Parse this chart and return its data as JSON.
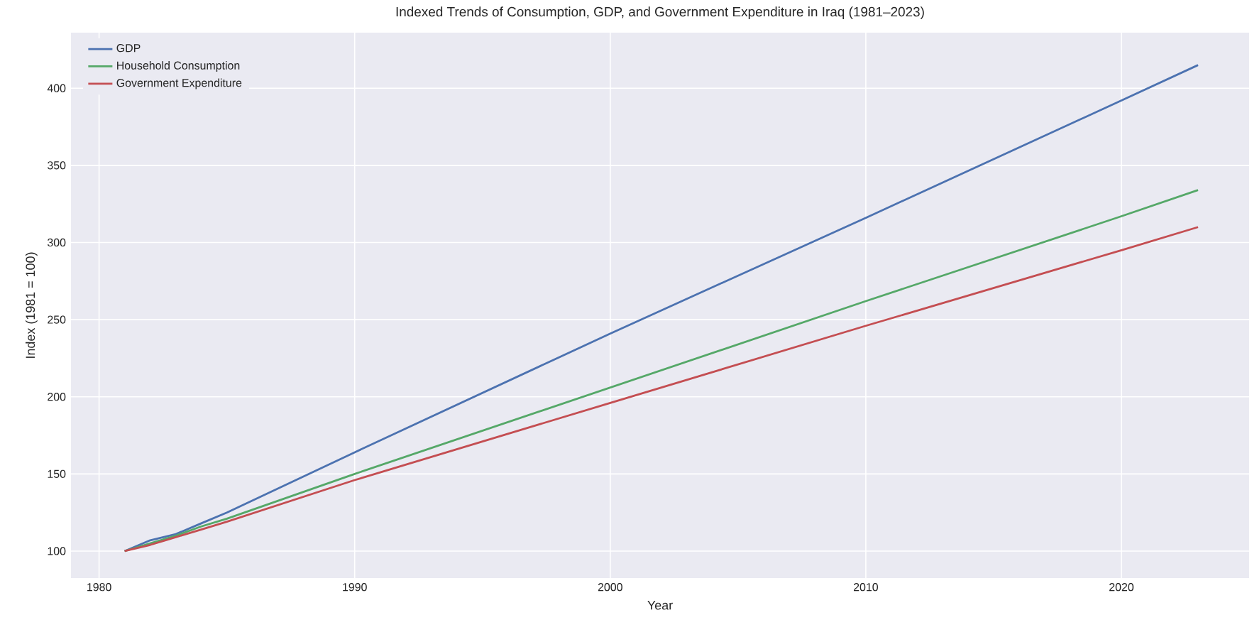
{
  "chart_data": {
    "type": "line",
    "title": "Indexed Trends of Consumption, GDP, and Government Expenditure in Iraq (1981–2023)",
    "xlabel": "Year",
    "ylabel": "Index (1981 = 100)",
    "x": [
      1981,
      1982,
      1983,
      1984,
      1985,
      1990,
      2000,
      2010,
      2020,
      2023
    ],
    "series": [
      {
        "name": "GDP",
        "color": "#4c72b0",
        "values": [
          100,
          107,
          111,
          118,
          125,
          164,
          241,
          316,
          392,
          415
        ]
      },
      {
        "name": "Household Consumption",
        "color": "#55a868",
        "values": [
          100,
          105,
          110,
          116,
          121,
          150,
          206,
          262,
          317,
          334
        ]
      },
      {
        "name": "Government Expenditure",
        "color": "#c44e52",
        "values": [
          100,
          104,
          109,
          114,
          119,
          146,
          196,
          246,
          295,
          310
        ]
      }
    ],
    "xlim": [
      1978.9,
      2025.0
    ],
    "ylim": [
      82.5,
      436
    ],
    "xticks": [
      1980,
      1990,
      2000,
      2010,
      2020
    ],
    "yticks": [
      100,
      150,
      200,
      250,
      300,
      350,
      400
    ],
    "grid": true,
    "legend": "top left",
    "marker": "none",
    "line_style": "solid"
  }
}
